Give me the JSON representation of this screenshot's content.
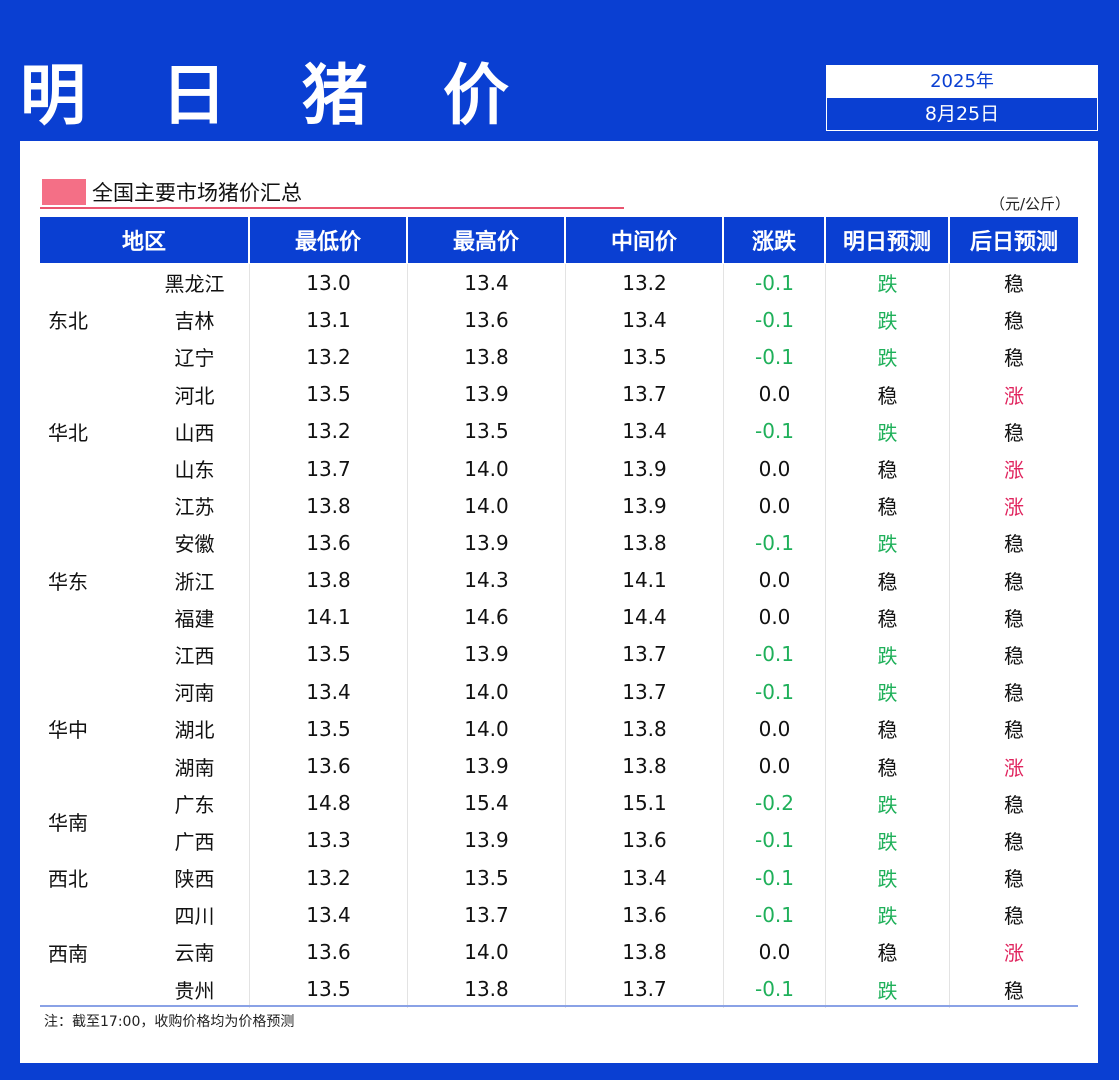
{
  "header": {
    "title": "明 日 猪 价",
    "year": "2025年",
    "date": "8月25日"
  },
  "section": {
    "title": "全国主要市场猪价汇总",
    "unit": "（元/公斤）"
  },
  "colors": {
    "primary": "#0a3fd2",
    "down": "#1fb05a",
    "up": "#e0245e",
    "accent": "#f46f86"
  },
  "table": {
    "columns": [
      "地区",
      "最低价",
      "最高价",
      "中间价",
      "涨跌",
      "明日预测",
      "后日预测"
    ],
    "groups": [
      {
        "region": "东北",
        "rows": 3
      },
      {
        "region": "华北",
        "rows": 3
      },
      {
        "region": "华东",
        "rows": 5
      },
      {
        "region": "华中",
        "rows": 3
      },
      {
        "region": "华南",
        "rows": 2
      },
      {
        "region": "西北",
        "rows": 1
      },
      {
        "region": "西南",
        "rows": 3
      }
    ],
    "rows": [
      [
        "黑龙江",
        "13.0",
        "13.4",
        "13.2",
        "-0.1",
        "跌",
        "稳"
      ],
      [
        "吉林",
        "13.1",
        "13.6",
        "13.4",
        "-0.1",
        "跌",
        "稳"
      ],
      [
        "辽宁",
        "13.2",
        "13.8",
        "13.5",
        "-0.1",
        "跌",
        "稳"
      ],
      [
        "河北",
        "13.5",
        "13.9",
        "13.7",
        "0.0",
        "稳",
        "涨"
      ],
      [
        "山西",
        "13.2",
        "13.5",
        "13.4",
        "-0.1",
        "跌",
        "稳"
      ],
      [
        "山东",
        "13.7",
        "14.0",
        "13.9",
        "0.0",
        "稳",
        "涨"
      ],
      [
        "江苏",
        "13.8",
        "14.0",
        "13.9",
        "0.0",
        "稳",
        "涨"
      ],
      [
        "安徽",
        "13.6",
        "13.9",
        "13.8",
        "-0.1",
        "跌",
        "稳"
      ],
      [
        "浙江",
        "13.8",
        "14.3",
        "14.1",
        "0.0",
        "稳",
        "稳"
      ],
      [
        "福建",
        "14.1",
        "14.6",
        "14.4",
        "0.0",
        "稳",
        "稳"
      ],
      [
        "江西",
        "13.5",
        "13.9",
        "13.7",
        "-0.1",
        "跌",
        "稳"
      ],
      [
        "河南",
        "13.4",
        "14.0",
        "13.7",
        "-0.1",
        "跌",
        "稳"
      ],
      [
        "湖北",
        "13.5",
        "14.0",
        "13.8",
        "0.0",
        "稳",
        "稳"
      ],
      [
        "湖南",
        "13.6",
        "13.9",
        "13.8",
        "0.0",
        "稳",
        "涨"
      ],
      [
        "广东",
        "14.8",
        "15.4",
        "15.1",
        "-0.2",
        "跌",
        "稳"
      ],
      [
        "广西",
        "13.3",
        "13.9",
        "13.6",
        "-0.1",
        "跌",
        "稳"
      ],
      [
        "陕西",
        "13.2",
        "13.5",
        "13.4",
        "-0.1",
        "跌",
        "稳"
      ],
      [
        "四川",
        "13.4",
        "13.7",
        "13.6",
        "-0.1",
        "跌",
        "稳"
      ],
      [
        "云南",
        "13.6",
        "14.0",
        "13.8",
        "0.0",
        "稳",
        "涨"
      ],
      [
        "贵州",
        "13.5",
        "13.8",
        "13.7",
        "-0.1",
        "跌",
        "稳"
      ]
    ]
  },
  "footer": {
    "note": "注：截至17:00，收购价格均为价格预测"
  }
}
